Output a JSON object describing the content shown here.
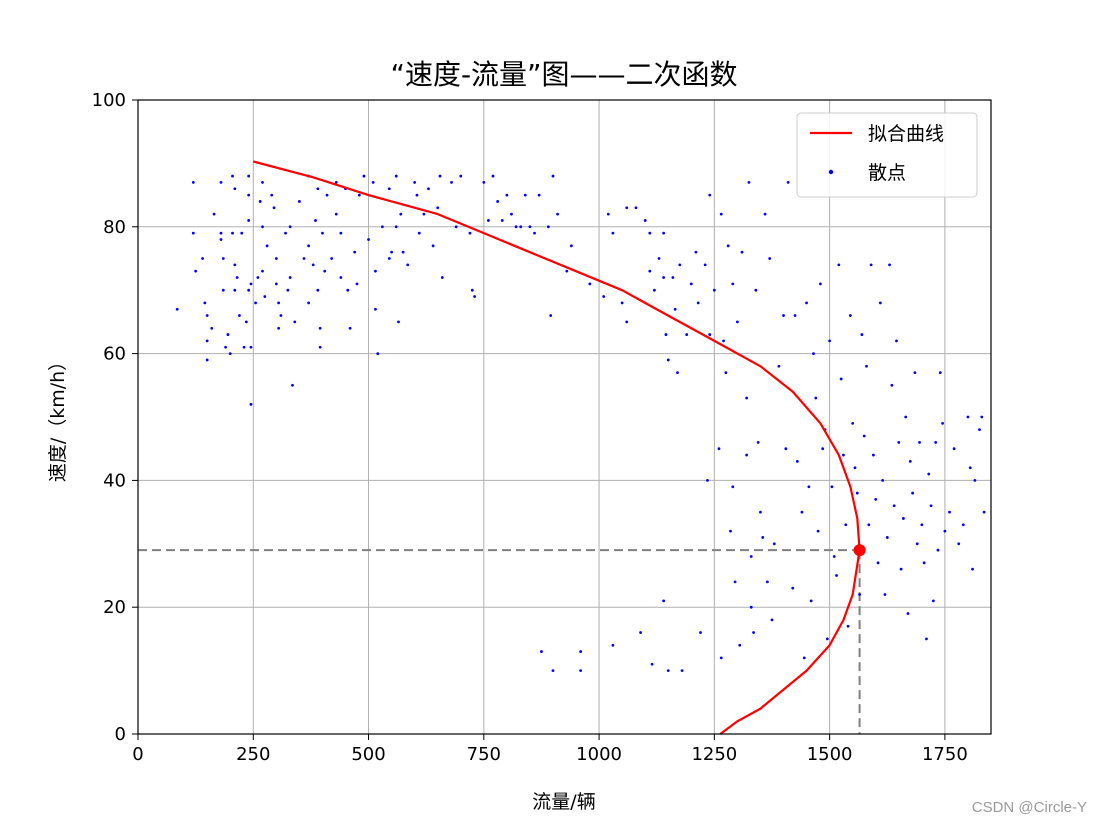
{
  "chart_data": {
    "type": "scatter",
    "title": "“速度-流量”图——二次函数",
    "xlabel": "流量/辆",
    "ylabel": "速度/（km/h）",
    "xlim": [
      0,
      1850
    ],
    "ylim": [
      0,
      100
    ],
    "xticks": [
      0,
      250,
      500,
      750,
      1000,
      1250,
      1500,
      1750
    ],
    "yticks": [
      0,
      20,
      40,
      60,
      80,
      100
    ],
    "grid": true,
    "legend_position": "top-right",
    "legend": [
      {
        "name": "拟合曲线",
        "kind": "line",
        "color": "#ff0000"
      },
      {
        "name": "散点",
        "kind": "point",
        "color": "#0000ff"
      }
    ],
    "fit_curve": {
      "name": "拟合曲线",
      "color": "#ff0000",
      "points": [
        [
          1263,
          0
        ],
        [
          1300,
          2
        ],
        [
          1350,
          4
        ],
        [
          1400,
          7
        ],
        [
          1450,
          10
        ],
        [
          1500,
          14
        ],
        [
          1530,
          18
        ],
        [
          1550,
          22
        ],
        [
          1565,
          29
        ],
        [
          1560,
          34
        ],
        [
          1545,
          39
        ],
        [
          1520,
          44
        ],
        [
          1480,
          49
        ],
        [
          1420,
          54
        ],
        [
          1350,
          58
        ],
        [
          1250,
          62
        ],
        [
          1150,
          66
        ],
        [
          1050,
          70
        ],
        [
          950,
          73
        ],
        [
          850,
          76
        ],
        [
          750,
          79
        ],
        [
          650,
          82
        ],
        [
          500,
          85
        ],
        [
          380,
          87.8
        ],
        [
          250,
          90.3
        ]
      ]
    },
    "optimum_point": {
      "x": 1565,
      "y": 29,
      "color": "#ff0000"
    },
    "reference_lines": {
      "x": 1565,
      "y": 29,
      "color": "#808080"
    },
    "scatter": {
      "name": "散点",
      "color": "#0000ff",
      "points": [
        [
          85,
          67
        ],
        [
          120,
          87
        ],
        [
          120,
          79
        ],
        [
          125,
          73
        ],
        [
          140,
          75
        ],
        [
          145,
          68
        ],
        [
          150,
          66
        ],
        [
          150,
          59
        ],
        [
          150,
          62
        ],
        [
          160,
          64
        ],
        [
          165,
          82
        ],
        [
          180,
          79
        ],
        [
          180,
          78
        ],
        [
          180,
          87
        ],
        [
          185,
          75
        ],
        [
          185,
          70
        ],
        [
          190,
          61
        ],
        [
          195,
          63
        ],
        [
          200,
          60
        ],
        [
          205,
          88
        ],
        [
          205,
          79
        ],
        [
          210,
          86
        ],
        [
          210,
          74
        ],
        [
          210,
          70
        ],
        [
          215,
          72
        ],
        [
          220,
          66
        ],
        [
          225,
          79
        ],
        [
          230,
          61
        ],
        [
          235,
          65
        ],
        [
          240,
          88
        ],
        [
          240,
          85
        ],
        [
          240,
          81
        ],
        [
          240,
          70
        ],
        [
          245,
          71
        ],
        [
          245,
          61
        ],
        [
          245,
          52
        ],
        [
          255,
          68
        ],
        [
          260,
          72
        ],
        [
          265,
          84
        ],
        [
          270,
          87
        ],
        [
          270,
          80
        ],
        [
          270,
          73
        ],
        [
          275,
          69
        ],
        [
          280,
          77
        ],
        [
          290,
          85
        ],
        [
          295,
          83
        ],
        [
          300,
          75
        ],
        [
          300,
          71
        ],
        [
          305,
          68
        ],
        [
          305,
          64
        ],
        [
          310,
          66
        ],
        [
          320,
          79
        ],
        [
          325,
          70
        ],
        [
          330,
          80
        ],
        [
          330,
          72
        ],
        [
          335,
          55
        ],
        [
          340,
          65
        ],
        [
          350,
          84
        ],
        [
          360,
          75
        ],
        [
          370,
          88
        ],
        [
          370,
          77
        ],
        [
          370,
          68
        ],
        [
          380,
          74
        ],
        [
          385,
          81
        ],
        [
          390,
          86
        ],
        [
          390,
          70
        ],
        [
          395,
          61
        ],
        [
          395,
          64
        ],
        [
          400,
          79
        ],
        [
          405,
          73
        ],
        [
          410,
          85
        ],
        [
          420,
          75
        ],
        [
          430,
          87
        ],
        [
          430,
          82
        ],
        [
          440,
          79
        ],
        [
          440,
          72
        ],
        [
          450,
          86
        ],
        [
          455,
          70
        ],
        [
          460,
          64
        ],
        [
          470,
          76
        ],
        [
          475,
          71
        ],
        [
          480,
          85
        ],
        [
          490,
          88
        ],
        [
          500,
          78
        ],
        [
          510,
          87
        ],
        [
          515,
          73
        ],
        [
          515,
          67
        ],
        [
          520,
          60
        ],
        [
          530,
          80
        ],
        [
          545,
          86
        ],
        [
          545,
          75
        ],
        [
          550,
          76
        ],
        [
          560,
          80
        ],
        [
          560,
          88
        ],
        [
          565,
          65
        ],
        [
          570,
          82
        ],
        [
          575,
          76
        ],
        [
          585,
          74
        ],
        [
          600,
          87
        ],
        [
          605,
          85
        ],
        [
          610,
          79
        ],
        [
          620,
          82
        ],
        [
          630,
          86
        ],
        [
          640,
          77
        ],
        [
          650,
          83
        ],
        [
          655,
          88
        ],
        [
          660,
          72
        ],
        [
          680,
          87
        ],
        [
          690,
          80
        ],
        [
          700,
          88
        ],
        [
          720,
          79
        ],
        [
          725,
          70
        ],
        [
          730,
          69
        ],
        [
          750,
          87
        ],
        [
          760,
          81
        ],
        [
          770,
          88
        ],
        [
          780,
          84
        ],
        [
          790,
          81
        ],
        [
          800,
          85
        ],
        [
          810,
          82
        ],
        [
          820,
          80
        ],
        [
          830,
          80
        ],
        [
          840,
          85
        ],
        [
          850,
          80
        ],
        [
          860,
          79
        ],
        [
          870,
          85
        ],
        [
          875,
          13
        ],
        [
          890,
          80
        ],
        [
          895,
          66
        ],
        [
          900,
          88
        ],
        [
          900,
          10
        ],
        [
          910,
          82
        ],
        [
          930,
          73
        ],
        [
          940,
          77
        ],
        [
          960,
          13
        ],
        [
          960,
          10
        ],
        [
          980,
          71
        ],
        [
          1010,
          69
        ],
        [
          1020,
          82
        ],
        [
          1030,
          79
        ],
        [
          1030,
          14
        ],
        [
          1050,
          68
        ],
        [
          1060,
          83
        ],
        [
          1060,
          65
        ],
        [
          1080,
          83
        ],
        [
          1090,
          16
        ],
        [
          1100,
          81
        ],
        [
          1110,
          79
        ],
        [
          1110,
          73
        ],
        [
          1115,
          11
        ],
        [
          1120,
          70
        ],
        [
          1130,
          75
        ],
        [
          1140,
          79
        ],
        [
          1140,
          72
        ],
        [
          1140,
          21
        ],
        [
          1145,
          63
        ],
        [
          1150,
          59
        ],
        [
          1150,
          10
        ],
        [
          1160,
          72
        ],
        [
          1165,
          67
        ],
        [
          1170,
          57
        ],
        [
          1175,
          74
        ],
        [
          1180,
          10
        ],
        [
          1190,
          63
        ],
        [
          1200,
          71
        ],
        [
          1210,
          76
        ],
        [
          1215,
          68
        ],
        [
          1220,
          16
        ],
        [
          1230,
          74
        ],
        [
          1235,
          40
        ],
        [
          1240,
          85
        ],
        [
          1240,
          63
        ],
        [
          1250,
          70
        ],
        [
          1260,
          45
        ],
        [
          1265,
          82
        ],
        [
          1265,
          12
        ],
        [
          1270,
          62
        ],
        [
          1275,
          57
        ],
        [
          1280,
          77
        ],
        [
          1285,
          32
        ],
        [
          1290,
          71
        ],
        [
          1290,
          39
        ],
        [
          1295,
          24
        ],
        [
          1300,
          65
        ],
        [
          1305,
          14
        ],
        [
          1310,
          76
        ],
        [
          1320,
          53
        ],
        [
          1320,
          44
        ],
        [
          1325,
          87
        ],
        [
          1330,
          28
        ],
        [
          1330,
          20
        ],
        [
          1335,
          16
        ],
        [
          1340,
          70
        ],
        [
          1345,
          46
        ],
        [
          1350,
          35
        ],
        [
          1355,
          31
        ],
        [
          1360,
          82
        ],
        [
          1365,
          24
        ],
        [
          1370,
          75
        ],
        [
          1375,
          18
        ],
        [
          1380,
          30
        ],
        [
          1390,
          58
        ],
        [
          1400,
          66
        ],
        [
          1405,
          45
        ],
        [
          1410,
          87
        ],
        [
          1420,
          23
        ],
        [
          1425,
          66
        ],
        [
          1430,
          43
        ],
        [
          1440,
          35
        ],
        [
          1445,
          12
        ],
        [
          1450,
          68
        ],
        [
          1455,
          39
        ],
        [
          1460,
          21
        ],
        [
          1465,
          60
        ],
        [
          1470,
          53
        ],
        [
          1475,
          32
        ],
        [
          1480,
          71
        ],
        [
          1485,
          45
        ],
        [
          1490,
          48
        ],
        [
          1495,
          15
        ],
        [
          1500,
          62
        ],
        [
          1505,
          39
        ],
        [
          1510,
          28
        ],
        [
          1515,
          25
        ],
        [
          1520,
          74
        ],
        [
          1525,
          56
        ],
        [
          1530,
          44
        ],
        [
          1535,
          33
        ],
        [
          1540,
          17
        ],
        [
          1545,
          66
        ],
        [
          1550,
          49
        ],
        [
          1555,
          42
        ],
        [
          1560,
          38
        ],
        [
          1565,
          22
        ],
        [
          1570,
          63
        ],
        [
          1575,
          47
        ],
        [
          1580,
          58
        ],
        [
          1585,
          33
        ],
        [
          1590,
          74
        ],
        [
          1595,
          44
        ],
        [
          1600,
          37
        ],
        [
          1605,
          27
        ],
        [
          1610,
          68
        ],
        [
          1615,
          40
        ],
        [
          1620,
          22
        ],
        [
          1625,
          31
        ],
        [
          1630,
          74
        ],
        [
          1635,
          55
        ],
        [
          1640,
          36
        ],
        [
          1645,
          62
        ],
        [
          1650,
          46
        ],
        [
          1655,
          26
        ],
        [
          1660,
          34
        ],
        [
          1665,
          50
        ],
        [
          1670,
          19
        ],
        [
          1675,
          43
        ],
        [
          1680,
          38
        ],
        [
          1685,
          57
        ],
        [
          1690,
          30
        ],
        [
          1695,
          46
        ],
        [
          1700,
          33
        ],
        [
          1705,
          27
        ],
        [
          1710,
          15
        ],
        [
          1715,
          41
        ],
        [
          1720,
          36
        ],
        [
          1725,
          21
        ],
        [
          1730,
          46
        ],
        [
          1735,
          29
        ],
        [
          1740,
          57
        ],
        [
          1745,
          49
        ],
        [
          1750,
          32
        ],
        [
          1760,
          35
        ],
        [
          1770,
          45
        ],
        [
          1780,
          30
        ],
        [
          1790,
          33
        ],
        [
          1800,
          50
        ],
        [
          1805,
          42
        ],
        [
          1810,
          26
        ],
        [
          1815,
          40
        ],
        [
          1825,
          48
        ],
        [
          1830,
          50
        ],
        [
          1835,
          35
        ]
      ]
    }
  },
  "watermark": "CSDN @Circle-Y"
}
